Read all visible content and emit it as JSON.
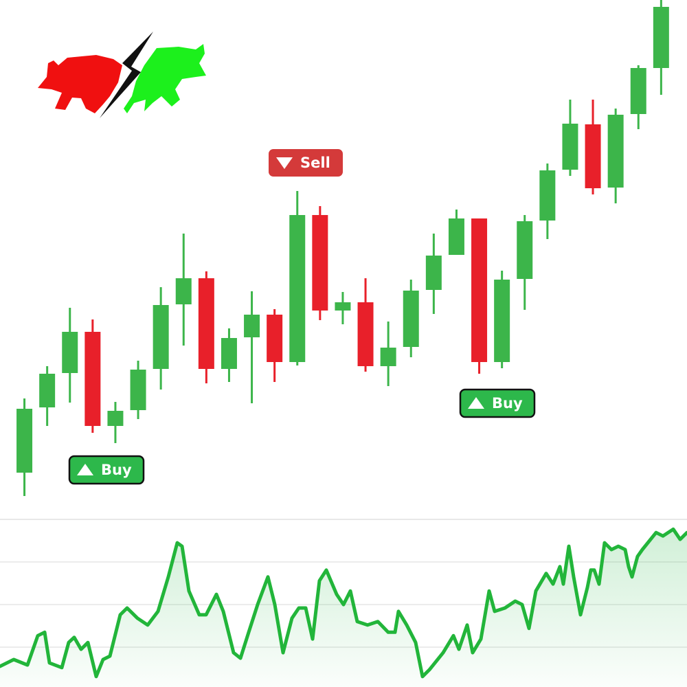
{
  "chart_data": [
    {
      "type": "candlestick",
      "categories": [
        null,
        null,
        null,
        null,
        null,
        null,
        null,
        null,
        null,
        null,
        null,
        null,
        null,
        null,
        null,
        null,
        null,
        null,
        null,
        null,
        null,
        null,
        null,
        null,
        null,
        null,
        null,
        null,
        null
      ],
      "open": [
        5.2,
        14.7,
        19.7,
        25.7,
        12,
        14.3,
        20.3,
        29.7,
        33.5,
        20.3,
        24.9,
        28.2,
        21.3,
        42.7,
        28.8,
        30,
        20.7,
        23.5,
        31.8,
        36.9,
        42.2,
        21.3,
        33.4,
        41.9,
        49.3,
        55.9,
        46.7,
        57.4,
        64.1
      ],
      "high": [
        16,
        20.7,
        29.2,
        27.5,
        15.5,
        21.5,
        32.2,
        40,
        34.5,
        26.2,
        31.6,
        29,
        46.2,
        44,
        31.5,
        33.5,
        27.2,
        33.3,
        40,
        43.5,
        42.2,
        34.6,
        42.7,
        50.2,
        59.5,
        59.5,
        58.2,
        64.5,
        74
      ],
      "low": [
        1.8,
        12,
        15.4,
        11,
        9.5,
        13,
        17.3,
        23.7,
        18.2,
        18.4,
        15.3,
        18.4,
        20.8,
        27.4,
        26.8,
        19.9,
        17.8,
        22,
        28.3,
        36.9,
        19.6,
        20.4,
        28.9,
        39.2,
        48.4,
        45.7,
        44.4,
        55.2,
        60.2
      ],
      "close": [
        14.5,
        19.6,
        25.7,
        12,
        14.2,
        20.2,
        29.6,
        33.5,
        20.3,
        24.8,
        28.2,
        21.3,
        42.7,
        28.8,
        30,
        20.7,
        23.4,
        31.7,
        36.8,
        42.2,
        21.3,
        33.3,
        41.8,
        49.2,
        56,
        46.6,
        57.3,
        64.1,
        73
      ],
      "up_color": "#3cb54a",
      "down_color": "#e8202a",
      "ylim": [
        0,
        74
      ],
      "signals": [
        "Buy",
        "Sell",
        "Buy"
      ]
    },
    {
      "type": "line",
      "x": [
        0,
        20,
        40,
        55,
        65,
        72,
        90,
        100,
        108,
        118,
        128,
        140,
        150,
        160,
        175,
        185,
        200,
        215,
        230,
        245,
        258,
        265,
        275,
        290,
        300,
        315,
        325,
        340,
        350,
        362,
        375,
        390,
        400,
        412,
        425,
        435,
        445,
        455,
        465,
        475,
        490,
        500,
        510,
        520,
        535,
        550,
        565,
        575,
        580,
        592,
        605,
        615,
        625,
        645,
        660,
        668,
        680,
        688,
        700,
        712,
        720,
        735,
        750,
        760,
        770,
        780,
        795,
        805,
        815,
        820,
        828,
        835,
        845,
        855,
        860,
        865,
        872,
        880,
        890,
        900,
        910,
        915,
        920,
        928,
        935,
        955,
        965,
        980,
        990,
        1000
      ],
      "values": [
        0.55,
        0.71,
        0.58,
        1.27,
        1.35,
        0.63,
        0.52,
        1.11,
        1.23,
        0.95,
        1.11,
        0.31,
        0.71,
        0.79,
        1.76,
        1.92,
        1.68,
        1.52,
        1.84,
        2.65,
        3.45,
        3.37,
        2.32,
        1.76,
        1.76,
        2.24,
        1.84,
        0.87,
        0.74,
        1.35,
        2.0,
        2.65,
        2.0,
        0.87,
        1.68,
        1.92,
        1.92,
        1.19,
        2.56,
        2.81,
        2.24,
        2.0,
        2.32,
        1.6,
        1.52,
        1.6,
        1.35,
        1.35,
        1.84,
        1.52,
        1.11,
        0.31,
        0.47,
        0.87,
        1.27,
        0.95,
        1.52,
        0.87,
        1.19,
        2.32,
        1.84,
        1.92,
        2.08,
        2.0,
        1.44,
        2.32,
        2.73,
        2.48,
        2.89,
        2.48,
        3.37,
        2.65,
        1.76,
        2.4,
        2.81,
        2.81,
        2.48,
        3.45,
        3.29,
        3.37,
        3.29,
        2.89,
        2.65,
        3.13,
        3.29,
        3.69,
        3.61,
        3.77,
        3.53,
        3.69
      ],
      "color": "#22b53a",
      "xlim": [
        0,
        1000
      ],
      "ylim": [
        0,
        4
      ],
      "yticks": [
        1,
        2,
        3,
        4
      ],
      "grid": true
    }
  ]
}
